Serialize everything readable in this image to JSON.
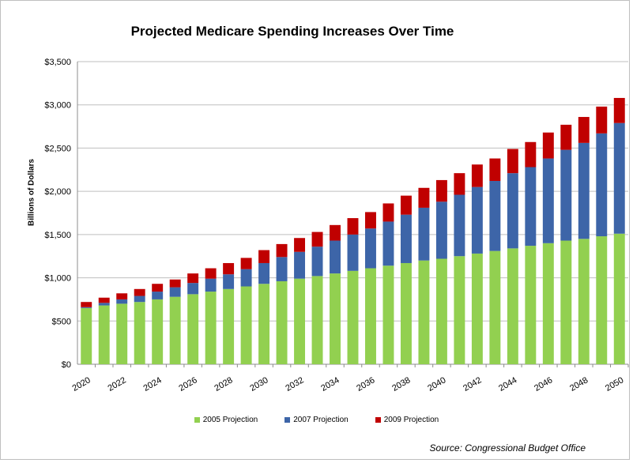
{
  "chart_data": {
    "type": "bar",
    "stacked": true,
    "title": "Projected Medicare Spending Increases Over Time",
    "ylabel": "Billions of Dollars",
    "xlabel": "",
    "source": "Source: Congressional Budget Office",
    "ylim": [
      0,
      3500
    ],
    "yticks": [
      "$0",
      "$500",
      "$1,000",
      "$1,500",
      "$2,000",
      "$2,500",
      "$3,000",
      "$3,500"
    ],
    "ytick_values": [
      0,
      500,
      1000,
      1500,
      2000,
      2500,
      3000,
      3500
    ],
    "grid": true,
    "legend_position": "bottom",
    "categories": [
      "2020",
      "2021",
      "2022",
      "2023",
      "2024",
      "2025",
      "2026",
      "2027",
      "2028",
      "2029",
      "2030",
      "2031",
      "2032",
      "2033",
      "2034",
      "2035",
      "2036",
      "2037",
      "2038",
      "2039",
      "2040",
      "2041",
      "2042",
      "2043",
      "2044",
      "2045",
      "2046",
      "2047",
      "2048",
      "2049",
      "2050"
    ],
    "xtick_labels": [
      "2020",
      "",
      "2022",
      "",
      "2024",
      "",
      "2026",
      "",
      "2028",
      "",
      "2030",
      "",
      "2032",
      "",
      "2034",
      "",
      "2036",
      "",
      "2038",
      "",
      "2040",
      "",
      "2042",
      "",
      "2044",
      "",
      "2046",
      "",
      "2048",
      "",
      "2050"
    ],
    "series": [
      {
        "name": "2005 Projection",
        "color": "#92d050",
        "values": [
          650,
          680,
          700,
          720,
          750,
          780,
          810,
          840,
          870,
          900,
          930,
          960,
          990,
          1020,
          1050,
          1080,
          1110,
          1140,
          1170,
          1200,
          1220,
          1250,
          1280,
          1310,
          1340,
          1370,
          1400,
          1430,
          1450,
          1480,
          1510
        ]
      },
      {
        "name": "2007 Projection",
        "color": "#3d65a8",
        "values": [
          10,
          30,
          50,
          70,
          90,
          110,
          130,
          150,
          170,
          200,
          240,
          280,
          310,
          340,
          380,
          420,
          460,
          510,
          560,
          610,
          660,
          710,
          770,
          810,
          870,
          910,
          980,
          1050,
          1110,
          1190,
          1280
        ]
      },
      {
        "name": "2009 Projection",
        "color": "#c00000",
        "values": [
          60,
          60,
          70,
          80,
          90,
          90,
          110,
          120,
          130,
          130,
          150,
          150,
          160,
          170,
          180,
          190,
          190,
          210,
          220,
          230,
          250,
          250,
          260,
          260,
          280,
          290,
          300,
          290,
          300,
          310,
          290
        ]
      }
    ]
  }
}
